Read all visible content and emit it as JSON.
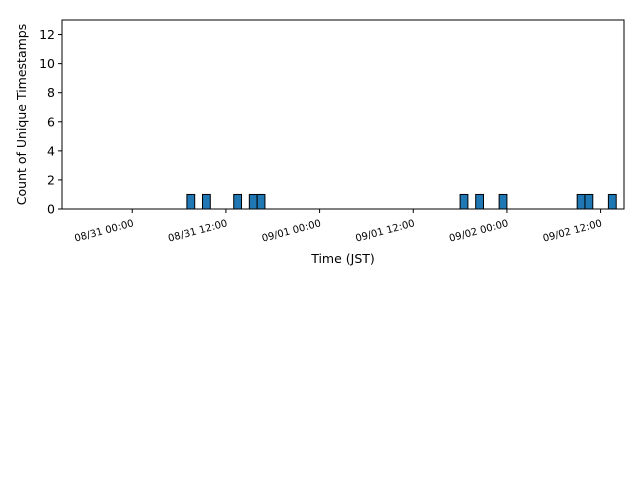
{
  "chart_data": {
    "type": "bar",
    "xlabel": "Time (JST)",
    "ylabel": "Count of Unique Timestamps",
    "ylim": [
      0,
      13
    ],
    "xlim": [
      "08/30 15:00",
      "09/02 15:00"
    ],
    "y_ticks": [
      0,
      2,
      4,
      6,
      8,
      10,
      12
    ],
    "x_ticks": [
      "08/31 00:00",
      "08/31 12:00",
      "09/01 00:00",
      "09/01 12:00",
      "09/02 00:00",
      "09/02 12:00"
    ],
    "bar_width_hours": 1,
    "grid": false,
    "bar_color": "#1f77b4",
    "edge_color": "#000000",
    "series": [
      {
        "values": [
          {
            "hour_start": "08/31 07:00",
            "count": 1
          },
          {
            "hour_start": "08/31 09:00",
            "count": 1
          },
          {
            "hour_start": "08/31 13:00",
            "count": 1
          },
          {
            "hour_start": "08/31 15:00",
            "count": 1
          },
          {
            "hour_start": "08/31 16:00",
            "count": 1
          },
          {
            "hour_start": "09/01 18:00",
            "count": 1
          },
          {
            "hour_start": "09/01 20:00",
            "count": 1
          },
          {
            "hour_start": "09/01 23:00",
            "count": 1
          },
          {
            "hour_start": "09/02 09:00",
            "count": 1
          },
          {
            "hour_start": "09/02 10:00",
            "count": 1
          },
          {
            "hour_start": "09/02 13:00",
            "count": 1
          }
        ]
      }
    ]
  }
}
